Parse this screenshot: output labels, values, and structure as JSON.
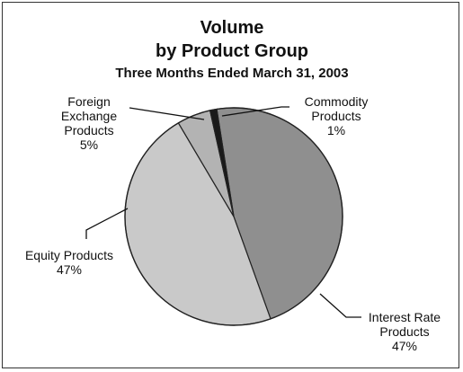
{
  "chart_data": {
    "type": "pie",
    "title": "Volume",
    "title_line2": "by Product Group",
    "subtitle": "Three Months Ended March 31, 2003",
    "slices": [
      {
        "name": "Interest Rate Products",
        "label_lines": [
          "Interest Rate",
          "Products",
          "47%"
        ],
        "value": 47,
        "color": "#8f8f8f"
      },
      {
        "name": "Equity Products",
        "label_lines": [
          "Equity Products",
          "47%"
        ],
        "value": 47,
        "color": "#c9c9c9"
      },
      {
        "name": "Foreign Exchange Products",
        "label_lines": [
          "Foreign",
          "Exchange",
          "Products",
          "5%"
        ],
        "value": 5,
        "color": "#b3b3b3"
      },
      {
        "name": "Commodity Products",
        "label_lines": [
          "Commodity",
          "Products",
          "1%"
        ],
        "value": 1,
        "color": "#1a1a1a"
      }
    ],
    "start_angle_deg": -9,
    "direction": "clockwise",
    "legend": "none",
    "grid": false
  }
}
